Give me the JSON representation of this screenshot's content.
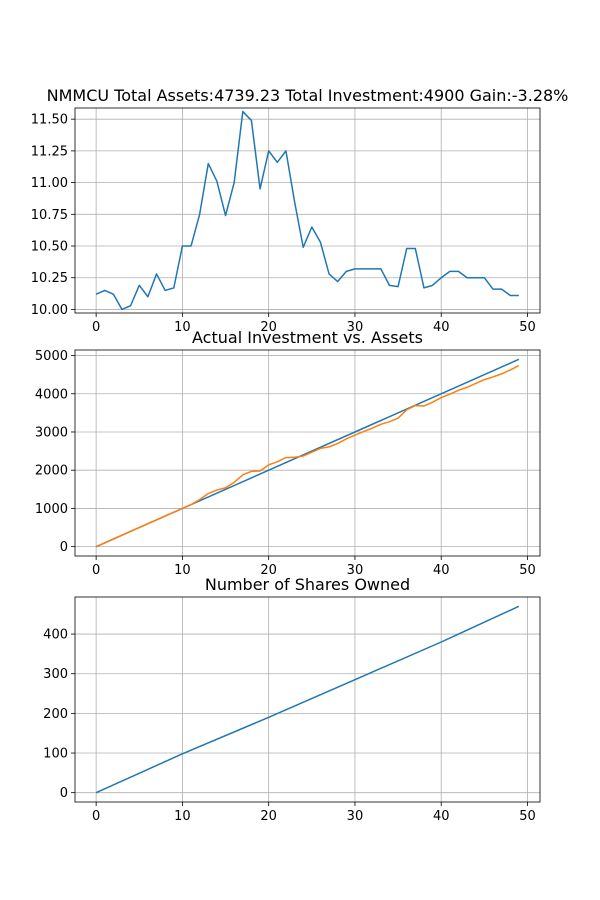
{
  "figure": {
    "colors": {
      "series1": "#1f77b4",
      "series2": "#ff7f0e",
      "grid": "#b0b0b0"
    }
  },
  "chart_data": [
    {
      "type": "line",
      "title": "NMMCU Total Assets:4739.23  Total Investment:4900  Gain:-3.28%",
      "xlabel": "",
      "ylabel": "",
      "grid": true,
      "xlim": [
        -2.45,
        51.45
      ],
      "ylim": [
        9.972,
        11.588
      ],
      "xticks": [
        0,
        10,
        20,
        30,
        40,
        50
      ],
      "yticks": [
        10.0,
        10.25,
        10.5,
        10.75,
        11.0,
        11.25,
        11.5
      ],
      "ytick_labels": [
        "10.00",
        "10.25",
        "10.50",
        "10.75",
        "11.00",
        "11.25",
        "11.50"
      ],
      "series": [
        {
          "x": [
            0,
            1,
            2,
            3,
            4,
            5,
            6,
            7,
            8,
            9,
            10,
            11,
            12,
            13,
            14,
            15,
            16,
            17,
            18,
            19,
            20,
            21,
            22,
            23,
            24,
            25,
            26,
            27,
            28,
            29,
            30,
            31,
            32,
            33,
            34,
            35,
            36,
            37,
            38,
            39,
            40,
            41,
            42,
            43,
            44,
            45,
            46,
            47,
            48,
            49
          ],
          "y": [
            10.12,
            10.15,
            10.12,
            10.0,
            10.03,
            10.19,
            10.1,
            10.28,
            10.15,
            10.17,
            10.5,
            10.5,
            10.75,
            11.15,
            11.01,
            10.74,
            11.0,
            11.56,
            11.49,
            10.95,
            11.25,
            11.16,
            11.25,
            10.85,
            10.49,
            10.65,
            10.53,
            10.28,
            10.22,
            10.3,
            10.32,
            10.32,
            10.32,
            10.32,
            10.19,
            10.18,
            10.48,
            10.48,
            10.17,
            10.19,
            10.25,
            10.3,
            10.3,
            10.25,
            10.25,
            10.25,
            10.16,
            10.16,
            10.11,
            10.11
          ]
        }
      ]
    },
    {
      "type": "line",
      "title": "Actual Investment vs. Assets",
      "xlabel": "",
      "ylabel": "",
      "grid": true,
      "xlim": [
        -2.45,
        51.45
      ],
      "ylim": [
        -245,
        5145
      ],
      "xticks": [
        0,
        10,
        20,
        30,
        40,
        50
      ],
      "yticks": [
        0,
        1000,
        2000,
        3000,
        4000,
        5000
      ],
      "ytick_labels": [
        "0",
        "1000",
        "2000",
        "3000",
        "4000",
        "5000"
      ],
      "series": [
        {
          "x": [
            0,
            49
          ],
          "y": [
            0,
            4900
          ]
        },
        {
          "x": [
            0,
            1,
            2,
            3,
            4,
            5,
            6,
            7,
            8,
            9,
            10,
            11,
            12,
            13,
            14,
            15,
            16,
            17,
            18,
            19,
            20,
            21,
            22,
            23,
            24,
            25,
            26,
            27,
            28,
            29,
            30,
            31,
            32,
            33,
            34,
            35,
            36,
            37,
            38,
            39,
            40,
            41,
            42,
            43,
            44,
            45,
            46,
            47,
            48,
            49
          ],
          "y": [
            0,
            100,
            200,
            300,
            400,
            500,
            600,
            700,
            800,
            900,
            1000,
            1100,
            1230,
            1390,
            1480,
            1540,
            1680,
            1880,
            1970,
            1980,
            2140,
            2220,
            2330,
            2340,
            2370,
            2470,
            2570,
            2610,
            2700,
            2820,
            2920,
            3010,
            3100,
            3200,
            3270,
            3360,
            3580,
            3690,
            3680,
            3780,
            3900,
            3990,
            4090,
            4170,
            4270,
            4370,
            4440,
            4520,
            4620,
            4739.23
          ]
        }
      ]
    },
    {
      "type": "line",
      "title": "Number of Shares Owned",
      "xlabel": "",
      "ylabel": "",
      "grid": true,
      "xlim": [
        -2.45,
        51.45
      ],
      "ylim": [
        -23.5,
        493.5
      ],
      "xticks": [
        0,
        10,
        20,
        30,
        40,
        50
      ],
      "yticks": [
        0,
        100,
        200,
        300,
        400
      ],
      "ytick_labels": [
        "0",
        "100",
        "200",
        "300",
        "400"
      ],
      "series": [
        {
          "x": [
            0,
            10,
            20,
            30,
            40,
            49
          ],
          "y": [
            0,
            98,
            190,
            285,
            380,
            470
          ]
        }
      ]
    }
  ]
}
